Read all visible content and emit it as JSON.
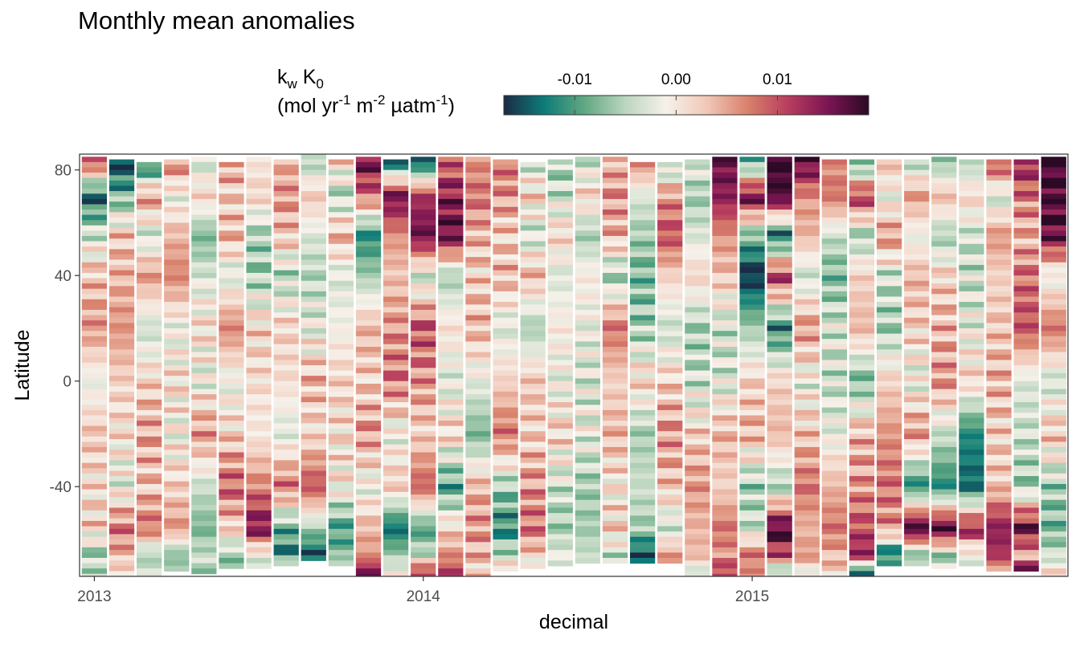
{
  "chart_data": {
    "type": "heatmap",
    "title": "Monthly mean anomalies",
    "xlabel": "decimal",
    "ylabel": "Latitude",
    "x_ticks": [
      {
        "value": 2013,
        "label": "2013"
      },
      {
        "value": 2014,
        "label": "2014"
      },
      {
        "value": 2015,
        "label": "2015"
      }
    ],
    "y_ticks": [
      {
        "value": 80,
        "label": "80"
      },
      {
        "value": 40,
        "label": "40"
      },
      {
        "value": 0,
        "label": "0"
      },
      {
        "value": -40,
        "label": "-40"
      }
    ],
    "xlim": [
      2012.955,
      2015.96
    ],
    "ylim": [
      -74,
      86
    ],
    "legend": {
      "placement": "top",
      "title_main": "k",
      "title_main_sub": "w",
      "title_main_2": " K",
      "title_main_sub_2": "0",
      "title_unit_open": "(mol yr",
      "title_unit_sup1": "-1",
      "title_unit_mid1": " m",
      "title_unit_sup2": "-2",
      "title_unit_mid2": " µatm",
      "title_unit_sup3": "-1",
      "title_unit_close": ")",
      "range": [
        -0.017,
        0.019
      ],
      "ticks": [
        {
          "value": -0.01,
          "label": "-0.01"
        },
        {
          "value": 0.0,
          "label": "0.00"
        },
        {
          "value": 0.01,
          "label": "0.01"
        }
      ],
      "colors": [
        "#1b2b45",
        "#0e7c78",
        "#62a882",
        "#bcd6bf",
        "#f6f1ea",
        "#f1c8b8",
        "#d9826c",
        "#b83e5e",
        "#7a1552",
        "#2c0a26"
      ]
    },
    "months": [
      "2013-01",
      "2013-02",
      "2013-03",
      "2013-04",
      "2013-05",
      "2013-06",
      "2013-07",
      "2013-08",
      "2013-09",
      "2013-10",
      "2013-11",
      "2013-12",
      "2014-01",
      "2014-02",
      "2014-03",
      "2014-04",
      "2014-05",
      "2014-06",
      "2014-07",
      "2014-08",
      "2014-09",
      "2014-10",
      "2014-11",
      "2014-12",
      "2015-01",
      "2015-02",
      "2015-03",
      "2015-04",
      "2015-05",
      "2015-06",
      "2015-07",
      "2015-08",
      "2015-09",
      "2015-10",
      "2015-11",
      "2015-12"
    ],
    "lat_knots": [
      84,
      70,
      55,
      40,
      20,
      0,
      -20,
      -40,
      -56,
      -66,
      -73
    ],
    "anomaly_profiles": [
      [
        0.012,
        -0.014,
        -0.003,
        0.003,
        0.006,
        -0.002,
        0.003,
        0.001,
        0.002,
        -0.006,
        -0.004
      ],
      [
        -0.017,
        -0.008,
        0.003,
        0.004,
        0.006,
        0.002,
        0.001,
        -0.002,
        0.008,
        0.004,
        0.0
      ],
      [
        -0.016,
        0.006,
        -0.004,
        0.006,
        -0.004,
        0.002,
        0.005,
        0.003,
        0.008,
        -0.006,
        -0.003
      ],
      [
        0.008,
        -0.002,
        0.004,
        0.007,
        -0.002,
        0.001,
        -0.001,
        0.002,
        0.006,
        -0.008,
        -0.004
      ],
      [
        -0.004,
        0.002,
        -0.008,
        -0.003,
        0.001,
        -0.002,
        0.006,
        -0.004,
        -0.008,
        -0.004,
        -0.006
      ],
      [
        0.006,
        0.002,
        0.004,
        -0.003,
        0.007,
        -0.002,
        0.002,
        0.009,
        0.002,
        -0.006,
        -0.008
      ],
      [
        0.0,
        0.002,
        -0.006,
        -0.006,
        0.002,
        0.001,
        0.0,
        0.007,
        0.015,
        -0.003,
        0.002
      ],
      [
        0.004,
        0.006,
        0.003,
        -0.005,
        0.002,
        0.001,
        -0.003,
        0.008,
        -0.009,
        -0.012,
        0.002
      ],
      [
        -0.006,
        0.003,
        -0.003,
        -0.005,
        -0.002,
        0.004,
        0.001,
        0.01,
        -0.006,
        -0.015,
        0.002
      ],
      [
        0.002,
        -0.005,
        0.004,
        -0.003,
        -0.001,
        0.002,
        0.001,
        0.0,
        -0.01,
        -0.008,
        0.004
      ],
      [
        0.016,
        0.008,
        -0.012,
        -0.006,
        0.004,
        0.002,
        0.006,
        -0.002,
        0.004,
        0.006,
        0.016
      ],
      [
        -0.016,
        0.016,
        0.006,
        0.003,
        0.006,
        0.008,
        -0.002,
        0.003,
        -0.014,
        -0.006,
        0.0
      ],
      [
        -0.017,
        0.012,
        0.016,
        -0.004,
        0.01,
        0.006,
        0.002,
        0.009,
        -0.01,
        -0.004,
        0.013
      ],
      [
        0.008,
        0.014,
        0.016,
        -0.006,
        0.001,
        -0.003,
        0.002,
        -0.01,
        0.002,
        0.006,
        0.012
      ],
      [
        0.006,
        0.008,
        0.004,
        0.002,
        0.004,
        -0.002,
        -0.008,
        0.004,
        0.006,
        0.004,
        0.002
      ],
      [
        0.008,
        0.006,
        0.002,
        0.004,
        -0.003,
        0.002,
        0.008,
        -0.006,
        -0.012,
        -0.004,
        0.003
      ],
      [
        -0.004,
        0.002,
        -0.004,
        0.004,
        -0.006,
        0.003,
        0.002,
        0.006,
        0.008,
        0.002,
        -0.003
      ],
      [
        -0.006,
        -0.004,
        0.002,
        -0.003,
        0.0,
        -0.002,
        0.002,
        -0.004,
        -0.006,
        -0.002,
        -0.004
      ],
      [
        -0.004,
        0.002,
        -0.006,
        0.0,
        -0.002,
        -0.003,
        -0.002,
        -0.006,
        -0.006,
        -0.004,
        -0.006
      ],
      [
        0.004,
        0.006,
        0.004,
        -0.006,
        0.008,
        0.002,
        0.004,
        0.0,
        0.002,
        -0.004,
        0.0
      ],
      [
        0.008,
        -0.003,
        -0.006,
        -0.008,
        -0.006,
        0.002,
        -0.006,
        -0.004,
        -0.006,
        -0.016,
        0.002
      ],
      [
        -0.008,
        0.006,
        0.01,
        0.002,
        -0.004,
        0.002,
        0.006,
        0.003,
        -0.004,
        0.006,
        0.004
      ],
      [
        -0.002,
        -0.006,
        -0.003,
        0.002,
        -0.006,
        -0.004,
        0.002,
        0.006,
        0.004,
        0.004,
        -0.004
      ],
      [
        0.016,
        0.014,
        0.006,
        0.003,
        -0.004,
        -0.003,
        0.004,
        0.002,
        0.008,
        0.006,
        0.012
      ],
      [
        -0.012,
        0.016,
        -0.008,
        -0.017,
        -0.006,
        0.002,
        0.004,
        -0.006,
        -0.004,
        0.008,
        0.006
      ],
      [
        0.018,
        0.018,
        -0.014,
        0.012,
        -0.012,
        0.002,
        0.004,
        -0.006,
        0.018,
        0.01,
        -0.008
      ],
      [
        0.018,
        0.006,
        0.004,
        -0.004,
        0.006,
        -0.002,
        0.003,
        0.008,
        0.004,
        0.006,
        -0.002
      ],
      [
        0.006,
        0.008,
        -0.004,
        -0.008,
        -0.003,
        -0.004,
        -0.002,
        0.004,
        0.008,
        0.004,
        0.002
      ],
      [
        -0.012,
        0.012,
        -0.006,
        0.002,
        0.004,
        -0.008,
        0.004,
        0.006,
        0.01,
        0.014,
        -0.016
      ],
      [
        0.004,
        -0.002,
        0.006,
        -0.004,
        -0.006,
        0.002,
        0.006,
        0.008,
        0.006,
        -0.014,
        -0.006
      ],
      [
        -0.006,
        0.006,
        -0.002,
        0.004,
        0.002,
        -0.002,
        0.006,
        -0.012,
        0.019,
        -0.008,
        -0.004
      ],
      [
        -0.008,
        0.004,
        -0.006,
        0.002,
        0.004,
        0.006,
        -0.004,
        -0.012,
        0.018,
        -0.006,
        -0.003
      ],
      [
        -0.006,
        0.002,
        -0.004,
        -0.004,
        -0.002,
        0.002,
        -0.012,
        -0.014,
        0.014,
        -0.004,
        0.006
      ],
      [
        0.012,
        -0.004,
        0.006,
        0.002,
        0.003,
        0.004,
        0.002,
        0.003,
        0.014,
        0.012,
        0.003
      ],
      [
        0.014,
        0.008,
        0.004,
        0.008,
        0.01,
        -0.003,
        -0.004,
        -0.006,
        0.016,
        0.004,
        0.018
      ],
      [
        0.019,
        0.018,
        0.016,
        -0.002,
        0.008,
        -0.004,
        0.003,
        -0.006,
        -0.008,
        -0.004,
        0.002
      ]
    ],
    "lat_bottoms": [
      -74,
      -74,
      -74,
      -71,
      -73,
      -71,
      -70,
      -69,
      -68,
      -69,
      -75,
      -74,
      -74,
      -74,
      -74,
      -72,
      -71,
      -70,
      -68,
      -68,
      -69,
      -68,
      -74,
      -74,
      -74,
      -74,
      -74,
      -74,
      -74,
      -69,
      -69,
      -70,
      -69,
      -71,
      -72,
      -74
    ],
    "lat_tops": [
      85,
      84,
      83,
      84,
      85,
      83,
      85,
      84,
      86,
      84,
      85,
      84,
      85,
      85,
      85,
      84,
      83,
      84,
      85,
      85,
      83,
      83,
      84,
      85,
      85,
      85,
      85,
      84,
      84,
      84,
      84,
      85,
      84,
      84,
      84,
      85
    ]
  }
}
